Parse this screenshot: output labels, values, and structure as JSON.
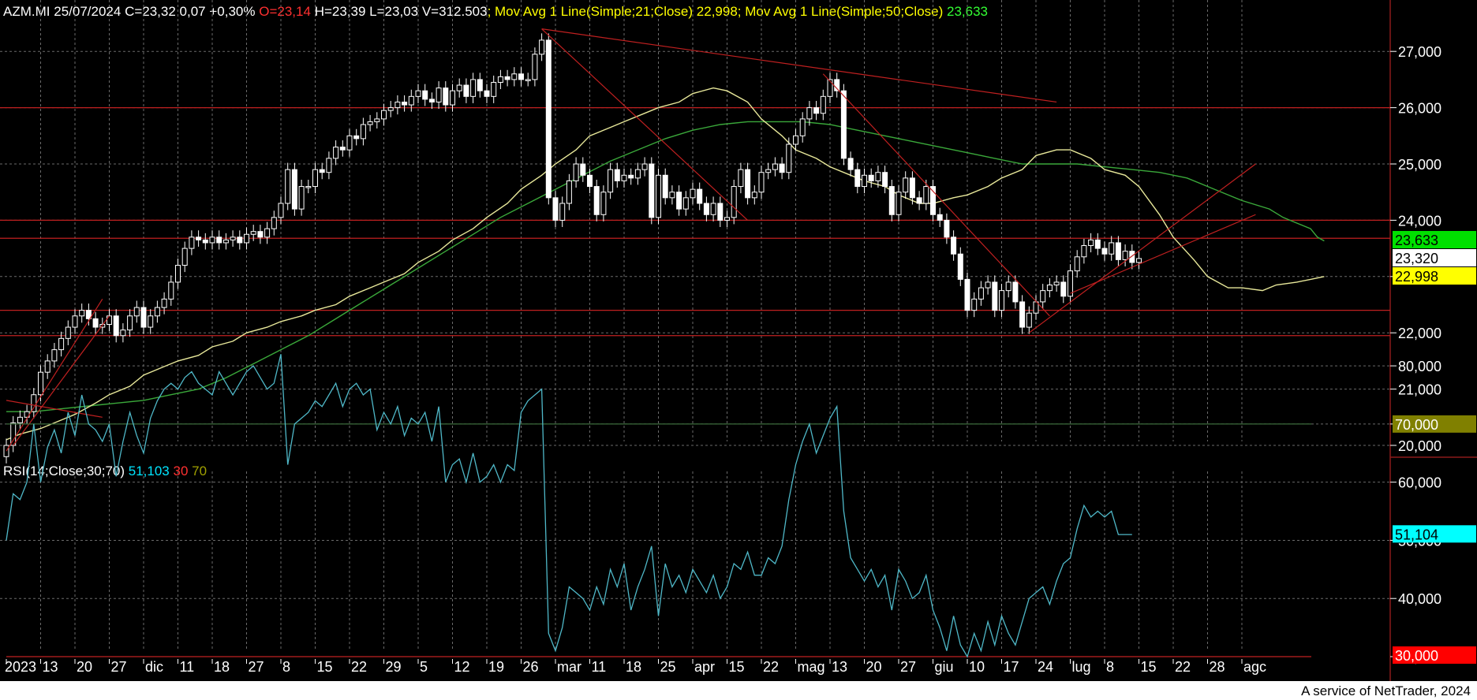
{
  "header": {
    "symbol": "AZM.MI",
    "date": "25/07/2024",
    "close": "C=23,32",
    "change": "0,07",
    "change_pct": "+0,30%",
    "open": "O=23,14",
    "high": "H=23,39",
    "low": "L=23,03",
    "volume": "V=312.503",
    "ma21_label": "; Mov Avg 1 Line(Simple;21;Close)",
    "ma21_value": "22,998",
    "ma50_label": "; Mov Avg 1 Line(Simple;50;Close)",
    "ma50_value": "23,633"
  },
  "rsi_header": {
    "label": "RSI(14;Close;30;70)",
    "value": "51,103",
    "low": "30",
    "high": "70"
  },
  "colors": {
    "background": "#000000",
    "text": "#ffffff",
    "open_red": "#ff3030",
    "ma21": "#e8e89a",
    "ma50": "#3aa83a",
    "rsi_line": "#4fb8c8",
    "rsi_text": "#00e5ff",
    "trendline": "#c02020",
    "grid": "#6a6a6a",
    "rsi_high_box": "#808000",
    "rsi_low_box": "#ff0000"
  },
  "footer": "A service of NetTrader, 2024",
  "chart_data": {
    "type": "candlestick",
    "price_axis": {
      "ylim": [
        19.9,
        27.6
      ],
      "ticks": [
        "20,000",
        "21,000",
        "22,000",
        "23,000",
        "24,000",
        "25,000",
        "26,000",
        "27,000"
      ],
      "tick_values": [
        20,
        21,
        22,
        23,
        24,
        25,
        26,
        27
      ]
    },
    "rsi_axis": {
      "ylim": [
        28,
        84
      ],
      "ticks": [
        "30,000",
        "40,000",
        "50,000",
        "60,000",
        "70,000",
        "80,000"
      ],
      "tick_values": [
        30,
        40,
        50,
        60,
        70,
        80
      ]
    },
    "x_labels": [
      "2023",
      "13",
      "20",
      "27",
      "dic",
      "11",
      "18",
      "27",
      "8",
      "15",
      "22",
      "29",
      "5",
      "12",
      "19",
      "26",
      "mar",
      "11",
      "18",
      "25",
      "apr",
      "15",
      "22",
      "mag",
      "13",
      "20",
      "27",
      "giu",
      "10",
      "17",
      "24",
      "lug",
      "8",
      "15",
      "22",
      "28",
      "agc"
    ],
    "x_label_bars": [
      0,
      5,
      10,
      15,
      20,
      25,
      30,
      35,
      40,
      45,
      50,
      55,
      60,
      65,
      70,
      75,
      80,
      85,
      90,
      95,
      100,
      105,
      110,
      115,
      120,
      125,
      130,
      135,
      140,
      145,
      150,
      155,
      160,
      165,
      170,
      175,
      180
    ],
    "close": [
      20.0,
      20.4,
      20.5,
      20.6,
      20.9,
      21.3,
      21.5,
      21.7,
      21.9,
      22.1,
      22.3,
      22.4,
      22.25,
      22.1,
      22.15,
      22.3,
      21.95,
      22.05,
      22.3,
      22.45,
      22.1,
      22.3,
      22.45,
      22.6,
      22.9,
      23.2,
      23.5,
      23.7,
      23.65,
      23.6,
      23.7,
      23.6,
      23.65,
      23.7,
      23.6,
      23.75,
      23.8,
      23.7,
      23.85,
      24.05,
      24.3,
      24.9,
      24.2,
      24.6,
      24.6,
      24.9,
      24.85,
      25.1,
      25.3,
      25.25,
      25.5,
      25.45,
      25.7,
      25.75,
      25.8,
      25.95,
      26.0,
      26.1,
      26.05,
      26.2,
      26.3,
      26.15,
      26.1,
      26.35,
      26.05,
      26.3,
      26.4,
      26.2,
      26.5,
      26.3,
      26.2,
      26.45,
      26.55,
      26.5,
      26.6,
      26.5,
      26.5,
      26.95,
      27.2,
      24.4,
      24.0,
      24.3,
      24.7,
      25.0,
      24.8,
      24.6,
      24.1,
      24.5,
      24.9,
      24.7,
      24.8,
      24.75,
      24.9,
      25.0,
      24.05,
      24.8,
      24.4,
      24.5,
      24.2,
      24.4,
      24.55,
      24.3,
      24.1,
      24.3,
      24.0,
      24.05,
      24.6,
      24.9,
      24.4,
      24.5,
      24.85,
      24.9,
      25.0,
      24.85,
      25.35,
      25.5,
      25.8,
      26.0,
      25.9,
      26.2,
      26.5,
      26.3,
      25.1,
      24.9,
      24.6,
      24.8,
      24.7,
      24.85,
      24.6,
      24.1,
      24.5,
      24.75,
      24.4,
      24.3,
      24.6,
      24.1,
      24.0,
      23.7,
      23.4,
      22.95,
      22.4,
      22.6,
      22.8,
      22.9,
      22.4,
      22.75,
      22.9,
      22.55,
      22.1,
      22.35,
      22.55,
      22.75,
      22.85,
      22.9,
      22.65,
      23.1,
      23.35,
      23.55,
      23.65,
      23.5,
      23.4,
      23.6,
      23.3,
      23.45,
      23.25,
      23.32
    ],
    "ma21": [
      20.1,
      20.2,
      20.3,
      20.45,
      20.55,
      20.75,
      20.9,
      21.05,
      21.25,
      21.4,
      21.5,
      21.6,
      21.75,
      21.85,
      22.0,
      22.1,
      22.2,
      22.3,
      22.4,
      22.5,
      22.65,
      22.8,
      22.9,
      23.05,
      23.25,
      23.45,
      23.65,
      23.85,
      24.05,
      24.3,
      24.55,
      24.8,
      25.0,
      25.25,
      25.5,
      25.65,
      25.75,
      25.9,
      26.0,
      26.1,
      26.25,
      26.35,
      26.3,
      26.1,
      25.8,
      25.5,
      25.25,
      25.1,
      24.95,
      24.8,
      24.7,
      24.6,
      24.45,
      24.3,
      24.3,
      24.4,
      24.45,
      24.6,
      24.75,
      24.9,
      25.15,
      25.25,
      25.25,
      25.1,
      24.9,
      24.8,
      24.6,
      24.1,
      23.7,
      23.3,
      23.0,
      22.8,
      22.8,
      22.75,
      22.85,
      22.9,
      22.95,
      23.0
    ],
    "ma21_bars": [
      0,
      2,
      5,
      8,
      10,
      13,
      15,
      18,
      20,
      23,
      25,
      28,
      30,
      33,
      35,
      38,
      40,
      43,
      45,
      48,
      50,
      53,
      55,
      58,
      60,
      63,
      65,
      68,
      70,
      73,
      75,
      78,
      80,
      83,
      85,
      88,
      90,
      93,
      95,
      98,
      100,
      103,
      105,
      108,
      110,
      113,
      115,
      118,
      120,
      123,
      125,
      128,
      130,
      133,
      135,
      138,
      140,
      143,
      145,
      148,
      150,
      153,
      155,
      158,
      160,
      163,
      165,
      168,
      170,
      173,
      175,
      178,
      180,
      183,
      185,
      188,
      190,
      192
    ],
    "ma50": [
      20.6,
      20.6,
      20.65,
      20.7,
      20.75,
      20.8,
      20.9,
      21.0,
      21.2,
      21.45,
      21.7,
      21.95,
      22.25,
      22.55,
      22.85,
      23.15,
      23.45,
      23.75,
      24.05,
      24.3,
      24.55,
      24.8,
      25.05,
      25.25,
      25.45,
      25.6,
      25.7,
      25.75,
      25.75,
      25.75,
      25.7,
      25.6,
      25.5,
      25.4,
      25.3,
      25.2,
      25.1,
      25.0,
      25.0,
      25.0,
      24.95,
      24.9,
      24.85,
      24.75,
      24.55,
      24.35,
      24.2,
      24.05,
      23.95,
      23.85,
      23.7,
      23.633
    ],
    "ma50_bars": [
      0,
      4,
      8,
      12,
      16,
      20,
      24,
      28,
      32,
      36,
      40,
      44,
      48,
      52,
      56,
      60,
      64,
      68,
      72,
      76,
      80,
      84,
      88,
      92,
      96,
      100,
      104,
      108,
      112,
      116,
      120,
      124,
      128,
      132,
      136,
      140,
      144,
      148,
      152,
      156,
      160,
      164,
      168,
      172,
      176,
      180,
      184,
      186,
      188,
      190,
      191,
      192
    ],
    "rsi": [
      50,
      58,
      57,
      60,
      70,
      60,
      66,
      69,
      65,
      72,
      68,
      75,
      70,
      69,
      67,
      70,
      61,
      67,
      72,
      68,
      65,
      71,
      74,
      76,
      77,
      76,
      78,
      79,
      77,
      76,
      75,
      79,
      77,
      75,
      77,
      79,
      80,
      78,
      76,
      77,
      82,
      63,
      70,
      71,
      72,
      74,
      73,
      75,
      77,
      73,
      76,
      77,
      75,
      76,
      69,
      72,
      70,
      73,
      68,
      71,
      70,
      72,
      67,
      73,
      60,
      63,
      64,
      60,
      65,
      60,
      61,
      63,
      60,
      63,
      62,
      72,
      74,
      75,
      76,
      34,
      31,
      35,
      42,
      41,
      40,
      38,
      42,
      39,
      45,
      42,
      46,
      38,
      42,
      45,
      49,
      37,
      46,
      42,
      44,
      41,
      45,
      43,
      41,
      44,
      40,
      42,
      46,
      45,
      48,
      44,
      44,
      47,
      46,
      49,
      57,
      63,
      67,
      70,
      65,
      68,
      71,
      73,
      55,
      47,
      45,
      43,
      45,
      42,
      44,
      38,
      45,
      43,
      40,
      41,
      44,
      38,
      35,
      31,
      37,
      32,
      30,
      34,
      31,
      36,
      32,
      37,
      34,
      32,
      36,
      40,
      41,
      42,
      39,
      43,
      46,
      47,
      52,
      56,
      54,
      55,
      54,
      55,
      51,
      51,
      51
    ],
    "rsi_levels": [
      30,
      70
    ],
    "rsi_markers": {
      "rsi_value": "51,104",
      "high": "70,000",
      "low": "30,000"
    },
    "price_markers": {
      "ma50": "23,633",
      "close": "23,320",
      "ma21": "22,998"
    },
    "horizontal_lines": [
      26.0,
      24.0,
      23.68,
      22.4,
      21.95
    ],
    "trendlines": [
      {
        "from": [
          78,
          27.4
        ],
        "to": [
          153,
          26.1
        ]
      },
      {
        "from": [
          78,
          27.4
        ],
        "to": [
          108,
          24.0
        ]
      },
      {
        "from": [
          119,
          26.6
        ],
        "to": [
          152,
          22.3
        ]
      },
      {
        "from": [
          149,
          22.0
        ],
        "to": [
          182,
          25.0
        ]
      },
      {
        "from": [
          155,
          22.7
        ],
        "to": [
          182,
          24.1
        ]
      },
      {
        "from": [
          0,
          19.9
        ],
        "to": [
          14,
          22.6
        ]
      },
      {
        "from": [
          1,
          20.0
        ],
        "to": [
          15,
          22.3
        ]
      },
      {
        "from": [
          0,
          20.8
        ],
        "to": [
          14,
          20.5
        ]
      }
    ]
  }
}
